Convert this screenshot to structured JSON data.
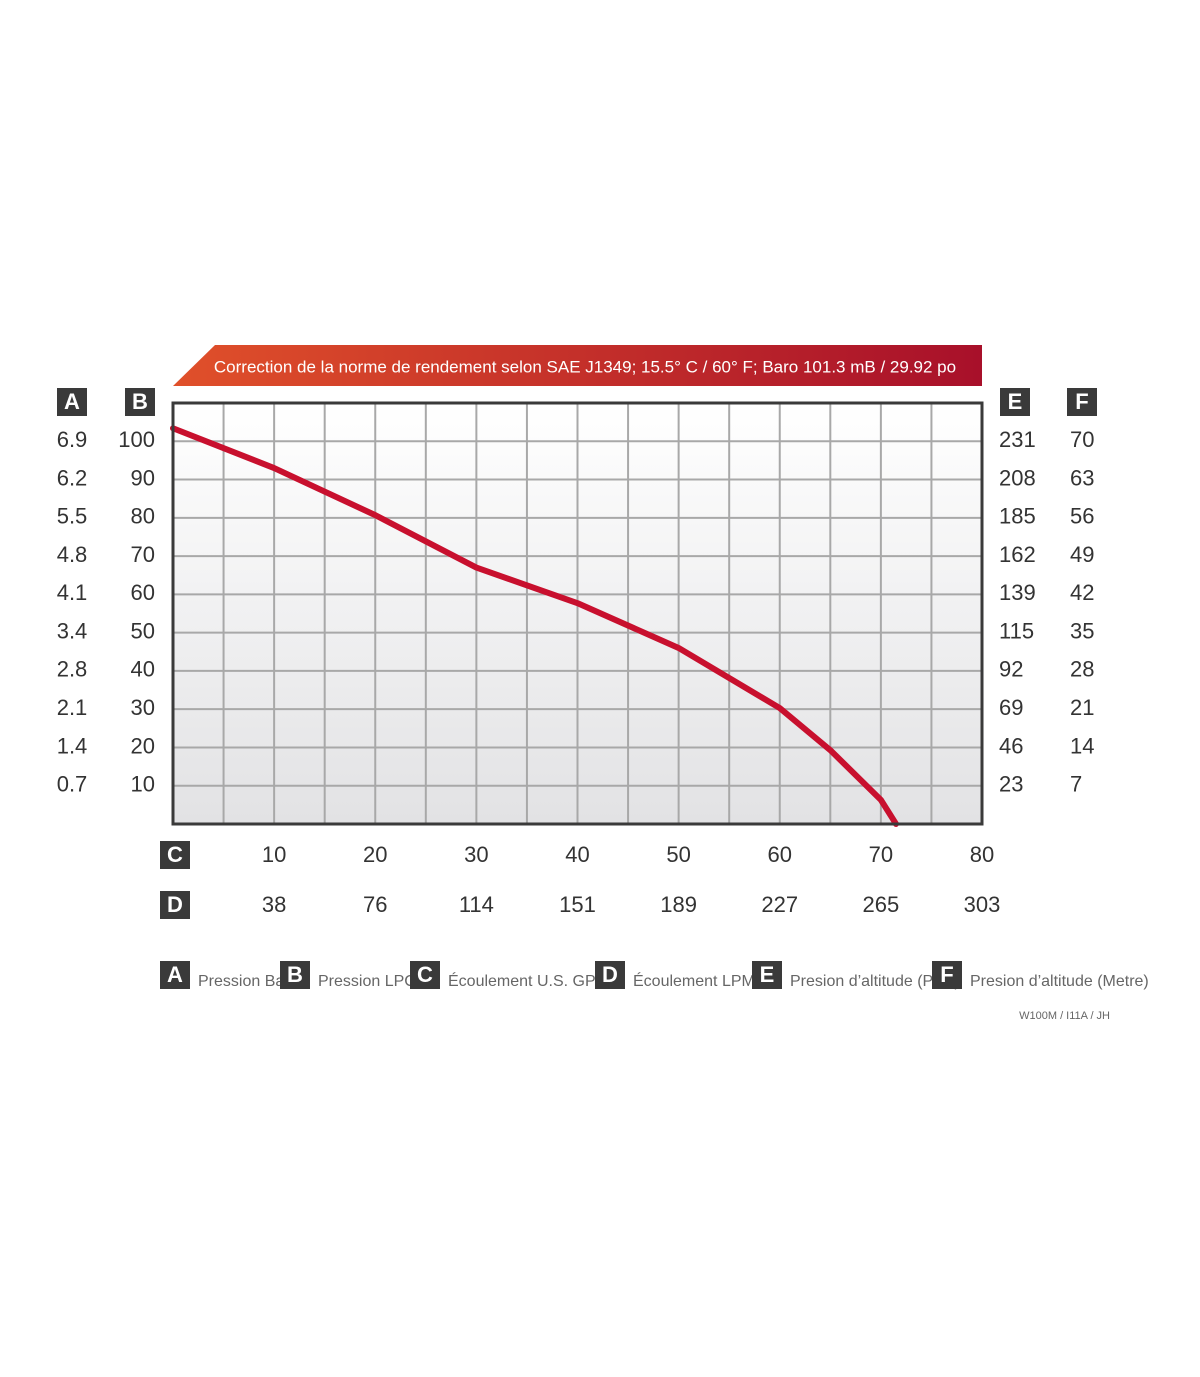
{
  "chart_data": {
    "type": "line",
    "title": "Correction de la norme de rendement selon SAE J1349;  15.5° C  / 60° F;  Baro 101.3 mB / 29.92 po",
    "x": [
      0,
      10,
      20,
      30,
      40,
      50,
      60,
      65,
      70,
      71.5
    ],
    "series": [
      {
        "name": "Pression LPC",
        "color": "#c8102e",
        "values": [
          103.4,
          93,
          80.7,
          67,
          57.7,
          46,
          30.3,
          19.3,
          6.3,
          0
        ]
      }
    ],
    "xlim": [
      0,
      80
    ],
    "xticks": [
      10,
      20,
      30,
      40,
      50,
      60,
      70,
      80
    ],
    "ylim": [
      0,
      110
    ],
    "yticks": [
      10,
      20,
      30,
      40,
      50,
      60,
      70,
      80,
      90,
      100
    ],
    "grid": true,
    "axes": [
      {
        "letter": "A",
        "label": "Pression Bar",
        "ticks": [
          0.7,
          1.4,
          2.1,
          2.8,
          3.4,
          4.1,
          4.8,
          5.5,
          6.2,
          6.9
        ]
      },
      {
        "letter": "B",
        "label": "Pression LPC"
      },
      {
        "letter": "C",
        "label": "Écoulement U.S. GPM"
      },
      {
        "letter": "D",
        "label": "Écoulement LPM",
        "ticks": [
          38,
          76,
          114,
          151,
          189,
          227,
          265,
          303
        ]
      },
      {
        "letter": "E",
        "label": "Presion d’altitude (Pied)",
        "ticks": [
          23,
          46,
          69,
          92,
          115,
          139,
          162,
          185,
          208,
          231
        ]
      },
      {
        "letter": "F",
        "label": "Presion d’altitude (Metre)",
        "ticks": [
          7,
          14,
          21,
          28,
          35,
          42,
          49,
          56,
          63,
          70
        ]
      }
    ],
    "code": "W100M / I11A / JH"
  }
}
